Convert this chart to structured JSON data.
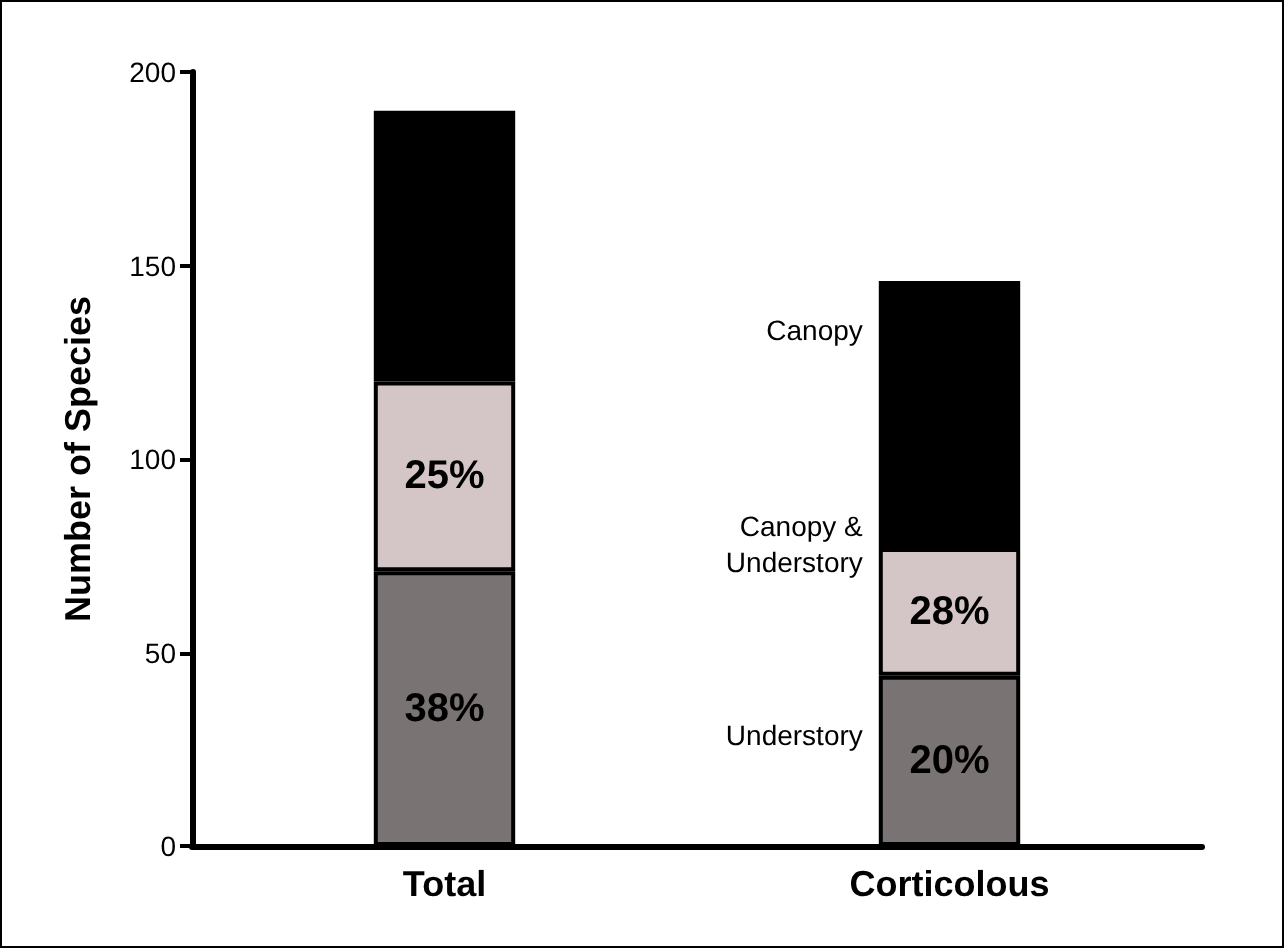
{
  "chart_data": {
    "type": "bar",
    "stacked": true,
    "ylabel": "Number of Species",
    "categories": [
      "Total",
      "Corticolous"
    ],
    "series": [
      {
        "name": "Understory",
        "color": "#7a7373",
        "values": [
          71,
          44
        ]
      },
      {
        "name": "Canopy & Understory",
        "color": "#d4c5c6",
        "values": [
          49,
          33
        ]
      },
      {
        "name": "Canopy",
        "color": "#000000",
        "values": [
          70,
          69
        ]
      }
    ],
    "annotations": [
      "38%",
      "20%",
      "25%",
      "28%"
    ],
    "ylim": [
      0,
      200
    ],
    "yticks": [
      0,
      50,
      100,
      150,
      200
    ],
    "grid": false,
    "legend": false
  }
}
